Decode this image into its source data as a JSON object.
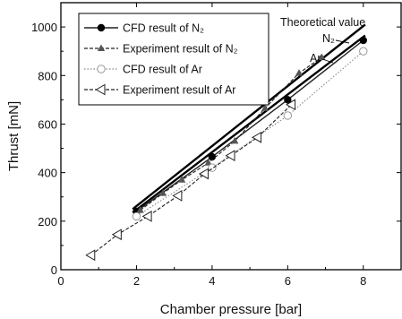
{
  "chart_data": {
    "type": "line",
    "xlabel": "Chamber pressure [bar]",
    "ylabel": "Thrust [mN]",
    "xlim": [
      0,
      9
    ],
    "ylim": [
      0,
      1100
    ],
    "xticks": [
      0,
      2,
      4,
      6,
      8
    ],
    "yticks": [
      0,
      200,
      400,
      600,
      800,
      1000
    ],
    "grid": false,
    "legend_position": "top-left",
    "series": [
      {
        "name": "CFD result of N₂",
        "style": "solid",
        "marker": "filled-circle",
        "x": [
          2,
          4,
          6,
          8
        ],
        "y": [
          240,
          465,
          700,
          945
        ]
      },
      {
        "name": "Experiment result of N₂",
        "style": "dashed",
        "marker": "filled-triangle-up",
        "x": [
          2.1,
          2.7,
          3.2,
          3.9,
          4.6,
          5.4,
          6.3,
          6.9
        ],
        "y": [
          245,
          315,
          370,
          440,
          530,
          665,
          810,
          875
        ]
      },
      {
        "name": "CFD result of Ar",
        "style": "dotted",
        "marker": "open-circle",
        "x": [
          2,
          4,
          6,
          8
        ],
        "y": [
          220,
          420,
          635,
          900
        ]
      },
      {
        "name": "Experiment result of Ar",
        "style": "dashed",
        "marker": "open-triangle-left",
        "x": [
          0.8,
          1.5,
          2.3,
          3.1,
          3.8,
          4.5,
          5.2,
          6.1
        ],
        "y": [
          60,
          145,
          220,
          305,
          395,
          470,
          545,
          680
        ]
      }
    ],
    "theoretical_lines": [
      {
        "label": "N₂",
        "x": [
          1.9,
          8.05
        ],
        "y": [
          250,
          1010
        ]
      },
      {
        "label": "Ar",
        "x": [
          1.9,
          8.05
        ],
        "y": [
          235,
          965
        ]
      }
    ],
    "annotations": {
      "theoretical": "Theoretical value",
      "n2": "N₂",
      "ar": "Ar"
    }
  }
}
